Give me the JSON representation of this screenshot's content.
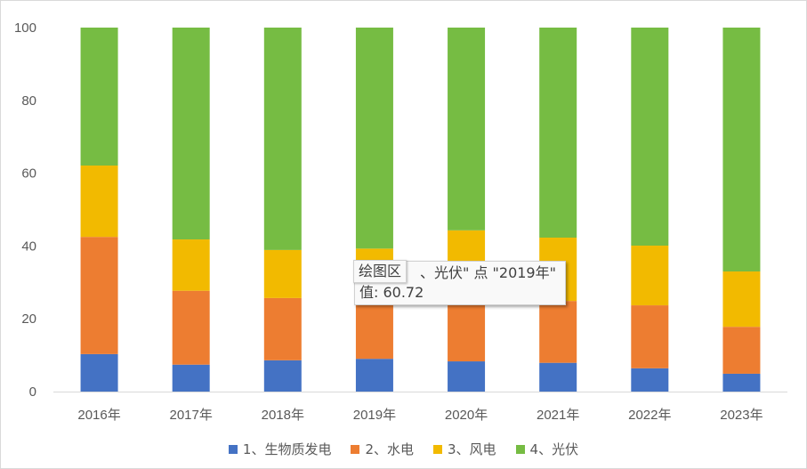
{
  "chart_data": {
    "type": "bar",
    "stacked": true,
    "title": "",
    "xlabel": "",
    "ylabel": "",
    "ylim": [
      0,
      100
    ],
    "yticks": [
      0,
      20,
      40,
      60,
      80,
      100
    ],
    "grid": false,
    "legend_position": "bottom",
    "categories": [
      "2016年",
      "2017年",
      "2018年",
      "2019年",
      "2020年",
      "2021年",
      "2022年",
      "2023年"
    ],
    "series": [
      {
        "name": "1、生物质发电",
        "color": "#4472C4",
        "values": [
          10.3,
          7.4,
          8.6,
          9.0,
          8.3,
          7.9,
          6.4,
          4.9
        ]
      },
      {
        "name": "2、水电",
        "color": "#ED7D31",
        "values": [
          32.2,
          20.3,
          17.1,
          16.0,
          16.0,
          17.0,
          17.3,
          12.9
        ]
      },
      {
        "name": "3、风电",
        "color": "#F2BA00",
        "values": [
          19.6,
          14.1,
          13.2,
          14.28,
          20.0,
          17.4,
          16.4,
          15.2
        ]
      },
      {
        "name": "4、光伏",
        "color": "#76BC43",
        "values": [
          37.9,
          58.2,
          61.1,
          60.72,
          55.7,
          57.7,
          59.9,
          67.0
        ]
      }
    ]
  },
  "tooltip": {
    "title": "绘图区",
    "series_text": "、光伏\" 点 \"2019年\"",
    "value_text": "值: 60.72"
  }
}
